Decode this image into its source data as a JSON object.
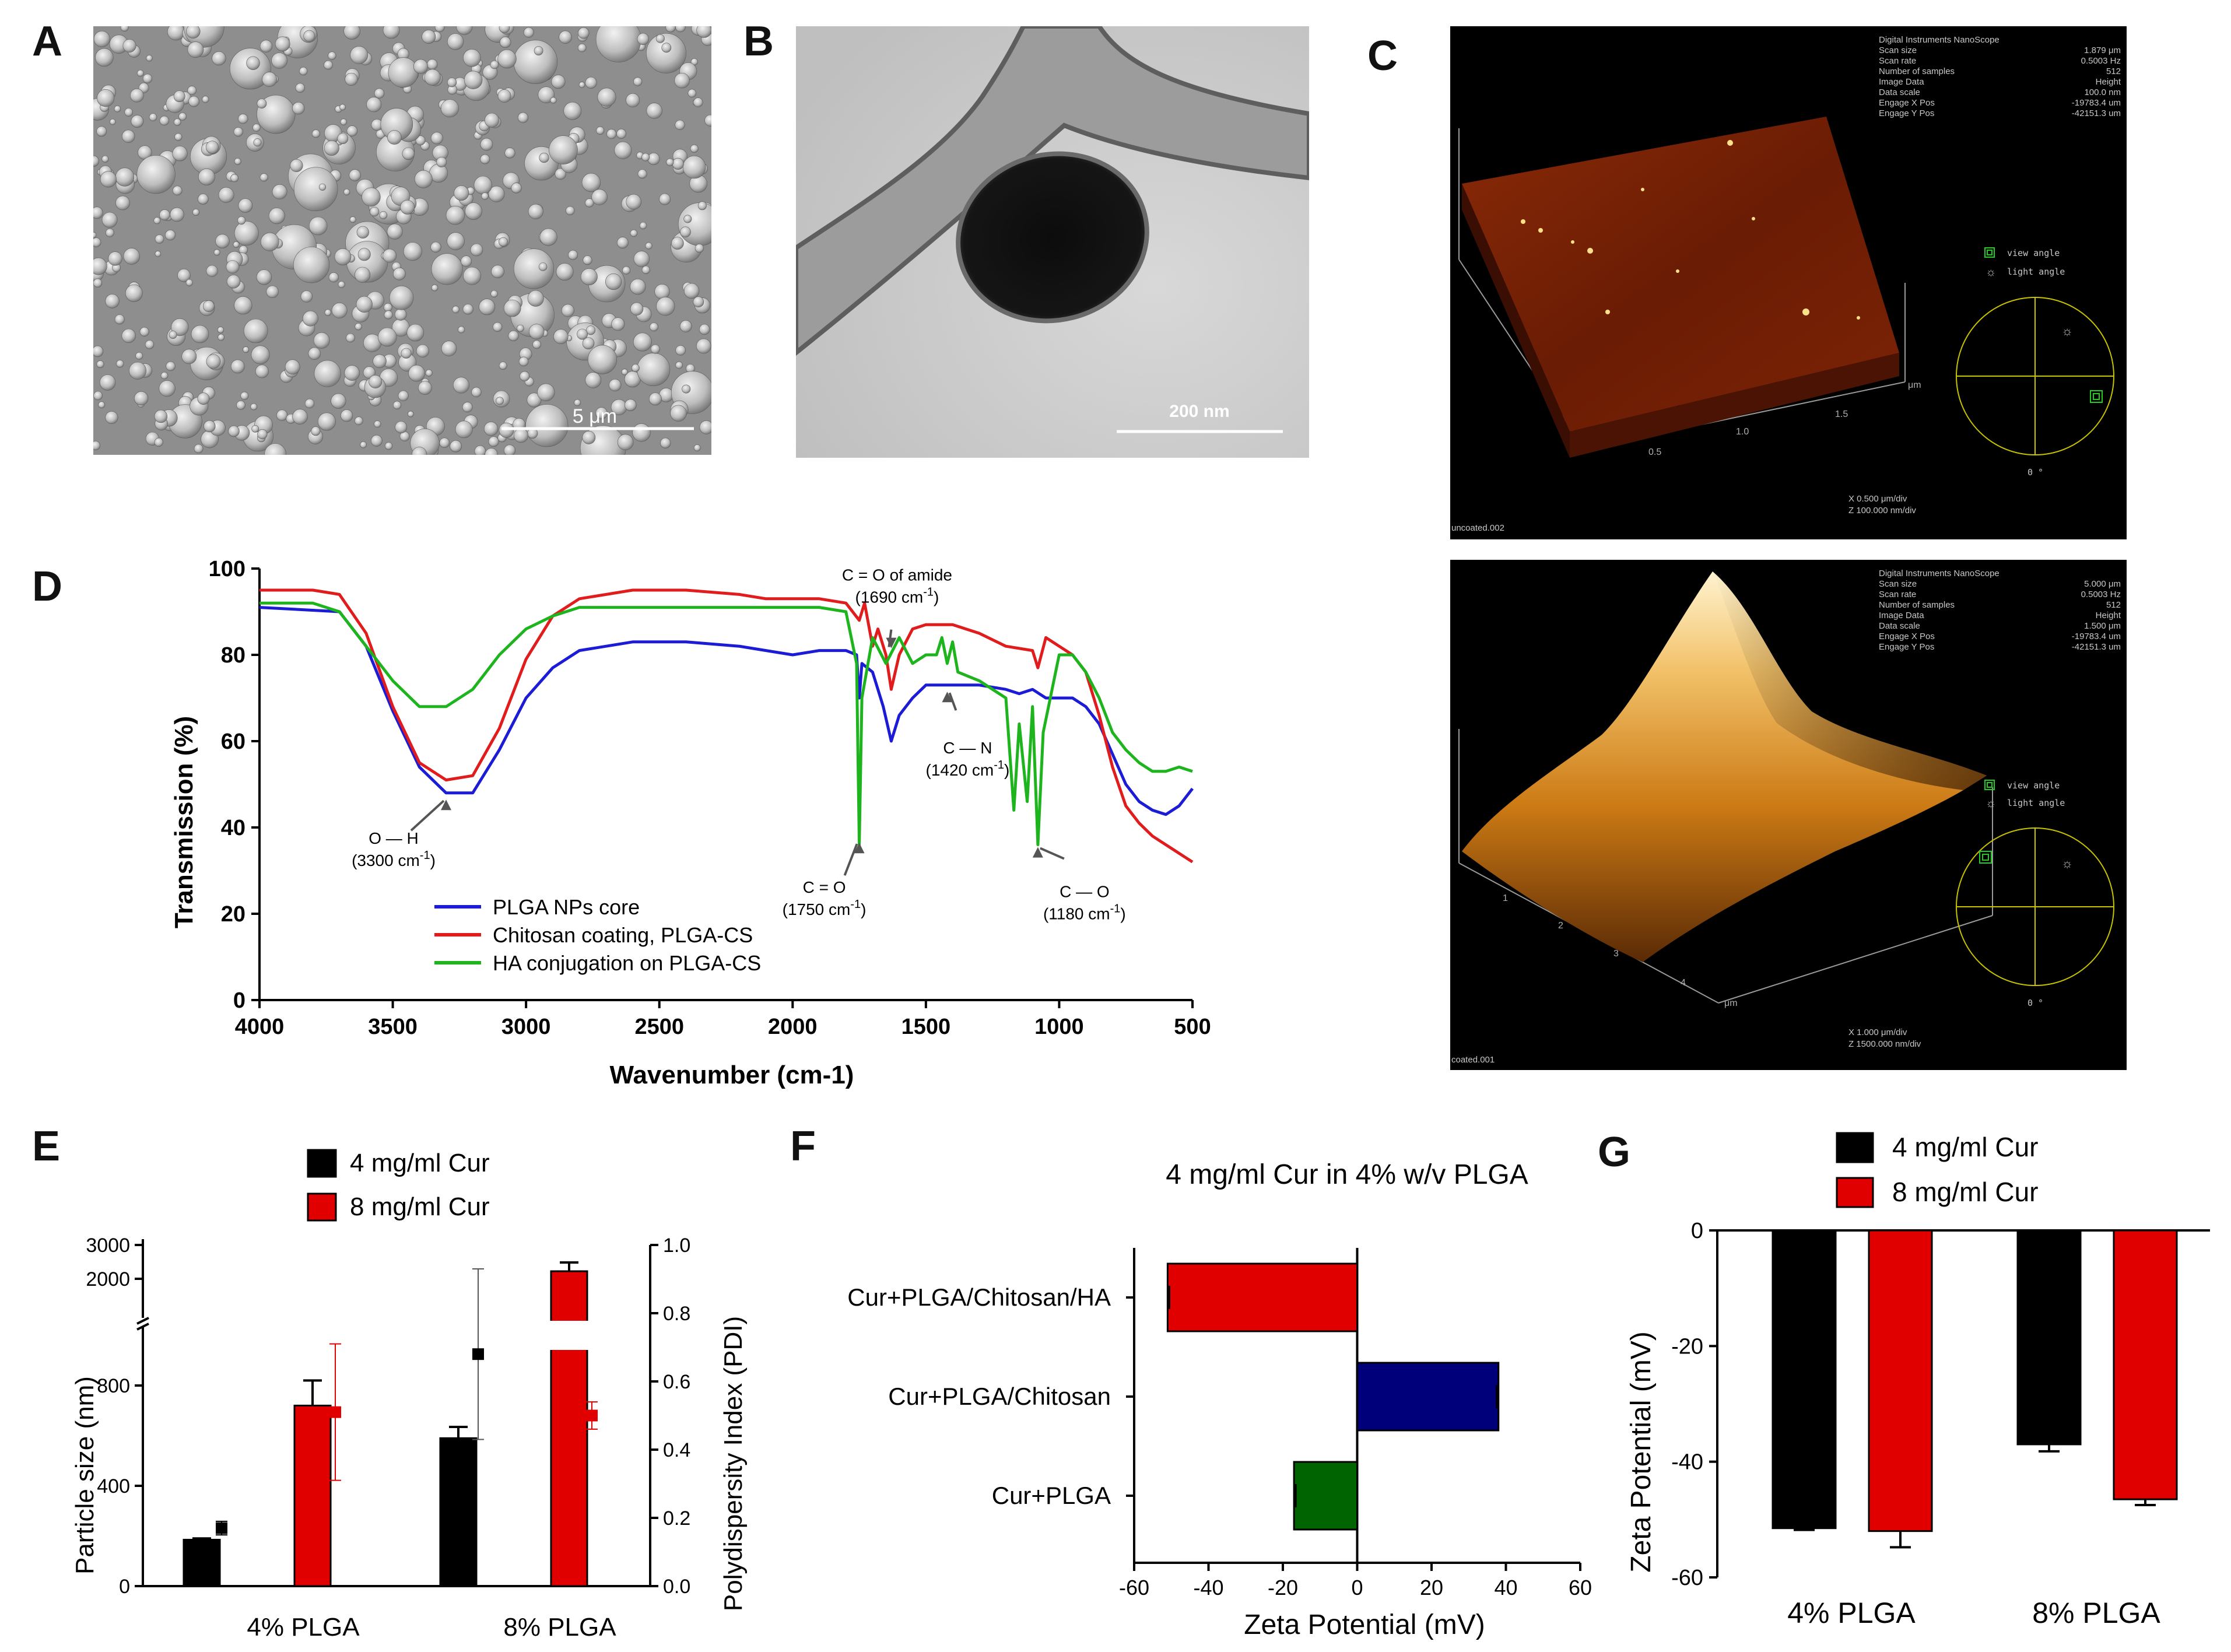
{
  "panel_labels": {
    "a": "A",
    "b": "B",
    "c": "C",
    "d": "D",
    "e": "E",
    "f": "F",
    "g": "G"
  },
  "sem": {
    "scale_label": "5 μm"
  },
  "tem": {
    "scale_label": "200 nm"
  },
  "afm": {
    "top": {
      "header_title": "Digital Instruments NanoScope",
      "params": [
        {
          "k": "Scan size",
          "v": "1.879 μm"
        },
        {
          "k": "Scan rate",
          "v": "0.5003 Hz"
        },
        {
          "k": "Number of samples",
          "v": "512"
        },
        {
          "k": "Image Data",
          "v": "Height"
        },
        {
          "k": "Data scale",
          "v": "100.0 nm"
        },
        {
          "k": "Engage X Pos",
          "v": "-19783.4 um"
        },
        {
          "k": "Engage Y Pos",
          "v": "-42151.3 um"
        }
      ],
      "view_angle": "view angle",
      "light_angle": "light angle",
      "axis_unit": "μm",
      "ticks": [
        "0.5",
        "1.0",
        "1.5"
      ],
      "xdiv": "X  0.500 μm/div",
      "zdiv": "Z  100.000 nm/div",
      "zero_deg": "0 °",
      "filename": "uncoated.002"
    },
    "bottom": {
      "header_title": "Digital Instruments NanoScope",
      "params": [
        {
          "k": "Scan size",
          "v": "5.000 μm"
        },
        {
          "k": "Scan rate",
          "v": "0.5003 Hz"
        },
        {
          "k": "Number of samples",
          "v": "512"
        },
        {
          "k": "Image Data",
          "v": "Height"
        },
        {
          "k": "Data scale",
          "v": "1.500 μm"
        },
        {
          "k": "Engage X Pos",
          "v": "-19783.4 um"
        },
        {
          "k": "Engage Y Pos",
          "v": "-42151.3 um"
        }
      ],
      "view_angle": "view angle",
      "light_angle": "light angle",
      "axis_unit": "μm",
      "ticks": [
        "1",
        "2",
        "3",
        "4"
      ],
      "xdiv": "X  1.000 μm/div",
      "zdiv": "Z  1500.000 nm/div",
      "zero_deg": "0 °",
      "filename": "coated.001"
    }
  },
  "chart_data": [
    {
      "id": "D",
      "type": "line",
      "xlabel": "Wavenumber (cm-1)",
      "ylabel": "Transmission (%)",
      "xlim": [
        4000,
        500
      ],
      "ylim": [
        0,
        100
      ],
      "xticks": [
        "4000",
        "3500",
        "3000",
        "2500",
        "2000",
        "1500",
        "1000",
        "500"
      ],
      "yticks": [
        "0",
        "20",
        "40",
        "60",
        "80",
        "100"
      ],
      "legend_position": "bottom-left",
      "series": [
        {
          "name": "PLGA NPs core",
          "color": "#1c1cd6",
          "x": [
            4000,
            3700,
            3600,
            3500,
            3400,
            3300,
            3200,
            3100,
            3000,
            2900,
            2800,
            2600,
            2400,
            2200,
            2100,
            2000,
            1900,
            1800,
            1760,
            1750,
            1740,
            1700,
            1660,
            1630,
            1600,
            1550,
            1500,
            1450,
            1400,
            1300,
            1200,
            1150,
            1100,
            1050,
            1000,
            950,
            900,
            850,
            800,
            750,
            700,
            650,
            600,
            550,
            500
          ],
          "y": [
            91,
            90,
            82,
            67,
            54,
            48,
            48,
            58,
            70,
            77,
            81,
            83,
            83,
            82,
            81,
            80,
            81,
            81,
            80,
            70,
            78,
            76,
            68,
            60,
            66,
            70,
            73,
            73,
            73,
            73,
            72,
            71,
            72,
            70,
            70,
            70,
            68,
            64,
            57,
            50,
            46,
            44,
            43,
            45,
            49
          ]
        },
        {
          "name": "Chitosan coating, PLGA-CS",
          "color": "#e01c1c",
          "x": [
            4000,
            3800,
            3700,
            3600,
            3500,
            3400,
            3300,
            3200,
            3100,
            3000,
            2900,
            2800,
            2600,
            2400,
            2200,
            2100,
            2000,
            1900,
            1800,
            1750,
            1730,
            1700,
            1680,
            1650,
            1630,
            1600,
            1550,
            1500,
            1450,
            1400,
            1300,
            1200,
            1100,
            1080,
            1050,
            1000,
            950,
            900,
            850,
            800,
            750,
            700,
            650,
            600,
            550,
            500
          ],
          "y": [
            95,
            95,
            94,
            85,
            68,
            55,
            51,
            52,
            63,
            79,
            89,
            93,
            95,
            95,
            94,
            93,
            93,
            93,
            92,
            88,
            92,
            82,
            86,
            80,
            72,
            80,
            86,
            87,
            87,
            87,
            85,
            82,
            81,
            77,
            84,
            82,
            80,
            76,
            66,
            54,
            45,
            41,
            38,
            36,
            34,
            32
          ]
        },
        {
          "name": "HA conjugation on PLGA-CS",
          "color": "#1eb41e",
          "x": [
            4000,
            3800,
            3700,
            3600,
            3500,
            3400,
            3300,
            3200,
            3100,
            3000,
            2900,
            2800,
            2600,
            2400,
            2200,
            2000,
            1900,
            1800,
            1760,
            1750,
            1740,
            1700,
            1650,
            1600,
            1550,
            1500,
            1460,
            1440,
            1420,
            1400,
            1380,
            1300,
            1200,
            1170,
            1150,
            1120,
            1100,
            1080,
            1060,
            1000,
            950,
            900,
            850,
            800,
            750,
            700,
            650,
            600,
            550,
            500
          ],
          "y": [
            92,
            92,
            90,
            82,
            74,
            68,
            68,
            72,
            80,
            86,
            89,
            91,
            91,
            91,
            91,
            91,
            91,
            90,
            78,
            36,
            70,
            84,
            78,
            84,
            78,
            80,
            80,
            84,
            78,
            83,
            76,
            74,
            70,
            44,
            64,
            46,
            68,
            36,
            62,
            80,
            80,
            76,
            70,
            62,
            58,
            55,
            53,
            53,
            54,
            53
          ]
        }
      ],
      "annotations": [
        {
          "label": "O — H",
          "sub": "(3300 cm",
          "sup": "-1",
          "tail": ")",
          "at_x": 3300,
          "at_y": 47
        },
        {
          "label": "C = O",
          "sub": "(1750 cm",
          "sup": "-1",
          "tail": ")",
          "at_x": 1750,
          "at_y": 37
        },
        {
          "label": "C = O of amide",
          "sub": "(1690 cm",
          "sup": "-1",
          "tail": ")",
          "at_x": 1630,
          "at_y": 81
        },
        {
          "label": "C — N",
          "sub": "(1420 cm",
          "sup": "-1",
          "tail": ")",
          "at_x": 1420,
          "at_y": 72
        },
        {
          "label": "C — O",
          "sub": "(1180 cm",
          "sup": "-1",
          "tail": ")",
          "at_x": 1080,
          "at_y": 36
        }
      ]
    },
    {
      "id": "E",
      "type": "bar",
      "ylabel": "Particle size (nm)",
      "y2label": "Polydispersity Index (PDI)",
      "categories": [
        "4% PLGA",
        "8% PLGA"
      ],
      "yticks_lower": [
        "0",
        "400",
        "800"
      ],
      "yticks_upper": [
        "2000",
        "3000"
      ],
      "y2ticks": [
        "0.0",
        "0.2",
        "0.4",
        "0.6",
        "0.8",
        "1.0"
      ],
      "axis_break": [
        1000,
        1800
      ],
      "series": [
        {
          "name": "4 mg/ml Cur",
          "color": "#000000",
          "values": [
            185,
            590
          ],
          "errors": [
            5,
            45
          ]
        },
        {
          "name": "8 mg/ml Cur",
          "color": "#e00000",
          "values": [
            720,
            2300
          ],
          "errors": [
            100,
            150
          ]
        }
      ],
      "pdi": [
        {
          "series": "4 mg/ml Cur",
          "values": [
            0.17,
            0.68
          ],
          "errors": [
            0.02,
            0.25
          ]
        },
        {
          "series": "8 mg/ml Cur",
          "values": [
            0.51,
            0.5
          ],
          "errors": [
            0.2,
            0.04
          ]
        }
      ]
    },
    {
      "id": "F",
      "type": "bar",
      "orientation": "horizontal",
      "title": "4 mg/ml Cur in 4% w/v PLGA",
      "xlabel": "Zeta Potential (mV)",
      "xlim": [
        -60,
        60
      ],
      "xticks": [
        "-60",
        "-40",
        "-20",
        "0",
        "20",
        "40",
        "60"
      ],
      "categories": [
        "Cur+PLGA/Chitosan/HA",
        "Cur+PLGA/Chitosan",
        "Cur+PLGA"
      ],
      "values": [
        -51,
        38,
        -17
      ],
      "colors": [
        "#e00000",
        "#00007a",
        "#006400"
      ]
    },
    {
      "id": "G",
      "type": "bar",
      "ylabel": "Zeta Potential (mV)",
      "ylim": [
        -60,
        0
      ],
      "yticks": [
        "0",
        "-20",
        "-40",
        "-60"
      ],
      "categories": [
        "4% PLGA",
        "8% PLGA"
      ],
      "series": [
        {
          "name": "4 mg/ml Cur",
          "color": "#000000",
          "values": [
            -51.5,
            -37
          ],
          "errors": [
            0.3,
            1.2
          ]
        },
        {
          "name": "8 mg/ml Cur",
          "color": "#e00000",
          "values": [
            -52,
            -46.5
          ],
          "errors": [
            2.8,
            1
          ]
        }
      ]
    }
  ]
}
